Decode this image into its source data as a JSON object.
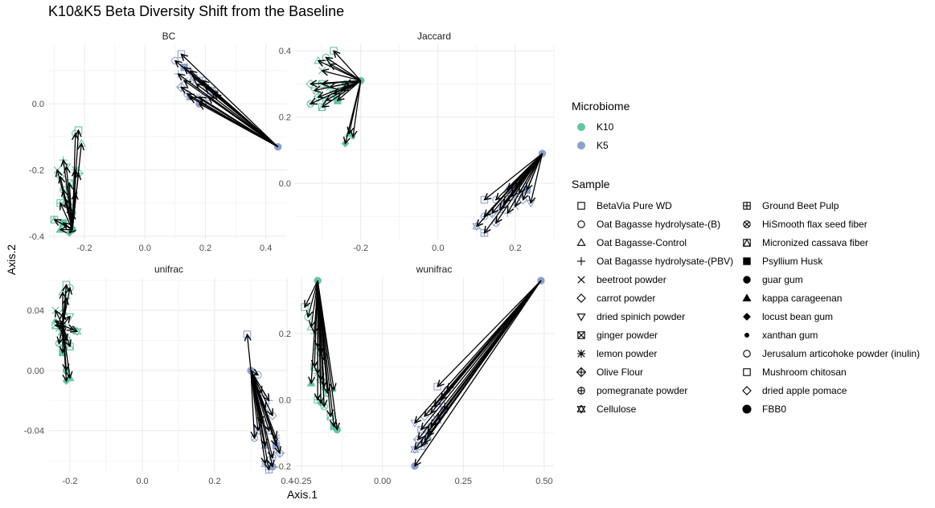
{
  "chart_data": {
    "type": "scatter",
    "title": "K10&K5 Beta Diversity Shift from the Baseline",
    "xlabel": "Axis.1",
    "ylabel": "Axis.2",
    "colors": {
      "K10": "#66c2a5",
      "K5": "#8da0cb",
      "arrow": "#000000",
      "grid": "#ebebeb"
    },
    "legend": {
      "microbiome_title": "Microbiome",
      "microbiome": [
        {
          "label": "K10",
          "color": "#66c2a5"
        },
        {
          "label": "K5",
          "color": "#8da0cb"
        }
      ],
      "sample_title": "Sample",
      "samples": [
        {
          "label": "BetaVia Pure WD",
          "shape": "square-open"
        },
        {
          "label": "Oat Bagasse hydrolysate-(B)",
          "shape": "circle-open"
        },
        {
          "label": "Oat Bagasse-Control",
          "shape": "triangle-open"
        },
        {
          "label": "Oat Bagasse hydrolysate-(PBV)",
          "shape": "plus"
        },
        {
          "label": "beetroot powder",
          "shape": "cross"
        },
        {
          "label": "carrot powder",
          "shape": "diamond-open"
        },
        {
          "label": "dried spinich powder",
          "shape": "triangle-down-open"
        },
        {
          "label": "ginger powder",
          "shape": "square-cross"
        },
        {
          "label": "lemon powder",
          "shape": "asterisk"
        },
        {
          "label": "Olive Flour",
          "shape": "diamond-plus"
        },
        {
          "label": "pomegranate powder",
          "shape": "circle-plus"
        },
        {
          "label": "Cellulose",
          "shape": "star-david"
        },
        {
          "label": "Ground Beet Pulp",
          "shape": "square-plus"
        },
        {
          "label": "HiSmooth flax seed fiber",
          "shape": "circle-cross"
        },
        {
          "label": "Micronized cassava fiber",
          "shape": "square-triangle"
        },
        {
          "label": "Psyllium Husk",
          "shape": "square-filled"
        },
        {
          "label": "guar gum",
          "shape": "circle-filled"
        },
        {
          "label": "kappa carageenan",
          "shape": "triangle-filled"
        },
        {
          "label": "locust bean gum",
          "shape": "diamond-filled"
        },
        {
          "label": "xanthan gum",
          "shape": "circle-small"
        },
        {
          "label": "Jerusalum articohoke powder (inulin)",
          "shape": "circle-open"
        },
        {
          "label": "Mushroom chitosan",
          "shape": "square-open"
        },
        {
          "label": "dried apple pomace",
          "shape": "diamond-open"
        },
        {
          "label": "FBB0",
          "shape": "circle-filled-large"
        }
      ]
    },
    "panels": [
      {
        "name": "BC",
        "xlim": [
          -0.32,
          0.47
        ],
        "ylim": [
          -0.41,
          0.18
        ],
        "xticks": [
          -0.2,
          0.0,
          0.2,
          0.4
        ],
        "xtick_labels": [
          "-0.2",
          "0.0",
          "0.2",
          "0.4"
        ],
        "yticks": [
          -0.4,
          -0.2,
          0.0
        ],
        "ytick_labels": [
          "-0.4",
          "-0.2",
          "0.0"
        ],
        "clusters": [
          {
            "group": "K10",
            "from": [
              -0.24,
              -0.38
            ],
            "to": [
              [
                -0.22,
                -0.08
              ],
              [
                -0.23,
                -0.09
              ],
              [
                -0.21,
                -0.12
              ],
              [
                -0.27,
                -0.17
              ],
              [
                -0.29,
                -0.2
              ],
              [
                -0.28,
                -0.22
              ],
              [
                -0.26,
                -0.19
              ],
              [
                -0.25,
                -0.24
              ],
              [
                -0.23,
                -0.2
              ],
              [
                -0.22,
                -0.21
              ],
              [
                -0.27,
                -0.26
              ],
              [
                -0.26,
                -0.29
              ],
              [
                -0.28,
                -0.3
              ],
              [
                -0.25,
                -0.31
              ],
              [
                -0.3,
                -0.35
              ],
              [
                -0.27,
                -0.36
              ],
              [
                -0.24,
                -0.33
              ],
              [
                -0.28,
                -0.38
              ],
              [
                -0.25,
                -0.39
              ],
              [
                -0.23,
                -0.27
              ]
            ]
          },
          {
            "group": "K5",
            "from": [
              0.44,
              -0.13
            ],
            "to": [
              [
                0.12,
                0.15
              ],
              [
                0.1,
                0.13
              ],
              [
                0.15,
                0.1
              ],
              [
                0.11,
                0.09
              ],
              [
                0.13,
                0.07
              ],
              [
                0.17,
                0.06
              ],
              [
                0.2,
                0.05
              ],
              [
                0.22,
                0.04
              ],
              [
                0.18,
                0.02
              ],
              [
                0.12,
                0.05
              ],
              [
                0.14,
                0.03
              ],
              [
                0.16,
                0.08
              ],
              [
                0.19,
                0.07
              ],
              [
                0.21,
                0.02
              ],
              [
                0.23,
                0.03
              ],
              [
                0.13,
                0.11
              ],
              [
                0.18,
                0.0
              ],
              [
                0.15,
                0.02
              ]
            ]
          }
        ]
      },
      {
        "name": "Jaccard",
        "xlim": [
          -0.37,
          0.3
        ],
        "ylim": [
          -0.17,
          0.42
        ],
        "xticks": [
          -0.2,
          0.0,
          0.2
        ],
        "xtick_labels": [
          "-0.2",
          "0.0",
          "0.2"
        ],
        "yticks": [
          0.0,
          0.2,
          0.4
        ],
        "ytick_labels": [
          "0.0",
          "0.2",
          "0.4"
        ],
        "clusters": [
          {
            "group": "K10",
            "from": [
              -0.2,
              0.31
            ],
            "to": [
              [
                -0.27,
                0.4
              ],
              [
                -0.29,
                0.38
              ],
              [
                -0.31,
                0.37
              ],
              [
                -0.28,
                0.36
              ],
              [
                -0.3,
                0.34
              ],
              [
                -0.33,
                0.3
              ],
              [
                -0.32,
                0.28
              ],
              [
                -0.3,
                0.3
              ],
              [
                -0.28,
                0.29
              ],
              [
                -0.31,
                0.26
              ],
              [
                -0.29,
                0.25
              ],
              [
                -0.27,
                0.27
              ],
              [
                -0.25,
                0.28
              ],
              [
                -0.33,
                0.24
              ],
              [
                -0.3,
                0.23
              ],
              [
                -0.26,
                0.25
              ],
              [
                -0.24,
                0.3
              ],
              [
                -0.23,
                0.15
              ],
              [
                -0.24,
                0.12
              ],
              [
                -0.22,
                0.14
              ]
            ]
          },
          {
            "group": "K5",
            "from": [
              0.27,
              0.09
            ],
            "to": [
              [
                0.12,
                -0.05
              ],
              [
                0.15,
                -0.05
              ],
              [
                0.16,
                -0.08
              ],
              [
                0.18,
                -0.09
              ],
              [
                0.2,
                -0.07
              ],
              [
                0.22,
                -0.05
              ],
              [
                0.24,
                -0.06
              ],
              [
                0.21,
                -0.03
              ],
              [
                0.17,
                -0.06
              ],
              [
                0.14,
                -0.09
              ],
              [
                0.12,
                -0.1
              ],
              [
                0.1,
                -0.13
              ],
              [
                0.12,
                -0.15
              ],
              [
                0.15,
                -0.12
              ],
              [
                0.19,
                -0.04
              ],
              [
                0.23,
                -0.02
              ],
              [
                0.2,
                -0.01
              ],
              [
                0.18,
                -0.02
              ]
            ]
          }
        ]
      },
      {
        "name": "unifrac",
        "xlim": [
          -0.26,
          0.4
        ],
        "ylim": [
          -0.068,
          0.062
        ],
        "xticks": [
          -0.2,
          0.0,
          0.2,
          0.4
        ],
        "xtick_labels": [
          "-0.2",
          "0.0",
          "0.2",
          "0.4"
        ],
        "yticks": [
          -0.04,
          0.0,
          0.04
        ],
        "ytick_labels": [
          "-0.04",
          "0.00",
          "0.04"
        ],
        "clusters": [
          {
            "group": "K10",
            "from": [
              -0.22,
              0.03
            ],
            "to": [
              [
                -0.21,
                0.057
              ],
              [
                -0.2,
                0.055
              ],
              [
                -0.22,
                0.052
              ],
              [
                -0.21,
                0.048
              ],
              [
                -0.24,
                0.04
              ],
              [
                -0.22,
                0.038
              ],
              [
                -0.2,
                0.036
              ],
              [
                -0.24,
                0.03
              ],
              [
                -0.23,
                0.028
              ],
              [
                -0.22,
                0.024
              ],
              [
                -0.19,
                0.027
              ],
              [
                -0.18,
                0.026
              ],
              [
                -0.21,
                0.02
              ],
              [
                -0.23,
                0.018
              ],
              [
                -0.2,
                0.016
              ],
              [
                -0.22,
                0.012
              ],
              [
                -0.21,
                0.0
              ],
              [
                -0.2,
                -0.005
              ],
              [
                -0.21,
                -0.007
              ],
              [
                -0.24,
                0.033
              ]
            ]
          },
          {
            "group": "K5",
            "from": [
              0.3,
              0.0
            ],
            "to": [
              [
                0.29,
                0.024
              ],
              [
                0.32,
                -0.003
              ],
              [
                0.33,
                -0.015
              ],
              [
                0.35,
                -0.02
              ],
              [
                0.34,
                -0.025
              ],
              [
                0.36,
                -0.03
              ],
              [
                0.33,
                -0.035
              ],
              [
                0.35,
                -0.04
              ],
              [
                0.37,
                -0.045
              ],
              [
                0.38,
                -0.055
              ],
              [
                0.36,
                -0.058
              ],
              [
                0.34,
                -0.062
              ],
              [
                0.35,
                -0.066
              ],
              [
                0.31,
                -0.045
              ],
              [
                0.32,
                -0.04
              ],
              [
                0.37,
                -0.05
              ],
              [
                0.36,
                -0.064
              ],
              [
                0.34,
                -0.05
              ]
            ]
          }
        ]
      },
      {
        "name": "wunifrac",
        "xlim": [
          -0.27,
          0.53
        ],
        "ylim": [
          -0.22,
          0.37
        ],
        "xticks": [
          -0.25,
          0.0,
          0.25,
          0.5
        ],
        "xtick_labels": [
          "-0.25",
          "0.00",
          "0.25",
          "0.50"
        ],
        "yticks": [
          -0.2,
          0.0,
          0.2
        ],
        "ytick_labels": [
          "-0.2",
          "0.0",
          "0.2"
        ],
        "clusters": [
          {
            "group": "K10",
            "from": [
              -0.2,
              0.36
            ],
            "to": [
              [
                -0.24,
                0.28
              ],
              [
                -0.23,
                0.25
              ],
              [
                -0.22,
                0.22
              ],
              [
                -0.21,
                0.2
              ],
              [
                -0.2,
                0.16
              ],
              [
                -0.19,
                0.14
              ],
              [
                -0.18,
                0.12
              ],
              [
                -0.21,
                0.1
              ],
              [
                -0.2,
                0.08
              ],
              [
                -0.19,
                0.06
              ],
              [
                -0.18,
                0.04
              ],
              [
                -0.17,
                0.02
              ],
              [
                -0.2,
                0.0
              ],
              [
                -0.18,
                -0.02
              ],
              [
                -0.16,
                -0.05
              ],
              [
                -0.15,
                -0.08
              ],
              [
                -0.14,
                -0.09
              ],
              [
                -0.22,
                0.05
              ],
              [
                -0.19,
                -0.01
              ],
              [
                -0.15,
                0.03
              ]
            ]
          },
          {
            "group": "K5",
            "from": [
              0.49,
              0.36
            ],
            "to": [
              [
                0.17,
                0.04
              ],
              [
                0.2,
                0.03
              ],
              [
                0.18,
                0.0
              ],
              [
                0.16,
                -0.02
              ],
              [
                0.15,
                -0.04
              ],
              [
                0.13,
                -0.05
              ],
              [
                0.1,
                -0.07
              ],
              [
                0.12,
                -0.09
              ],
              [
                0.14,
                -0.1
              ],
              [
                0.11,
                -0.12
              ],
              [
                0.13,
                -0.13
              ],
              [
                0.1,
                -0.15
              ],
              [
                0.12,
                -0.14
              ],
              [
                0.15,
                -0.08
              ],
              [
                0.17,
                -0.06
              ],
              [
                0.19,
                -0.03
              ],
              [
                0.1,
                -0.2
              ],
              [
                0.14,
                -0.11
              ]
            ]
          }
        ]
      }
    ]
  }
}
